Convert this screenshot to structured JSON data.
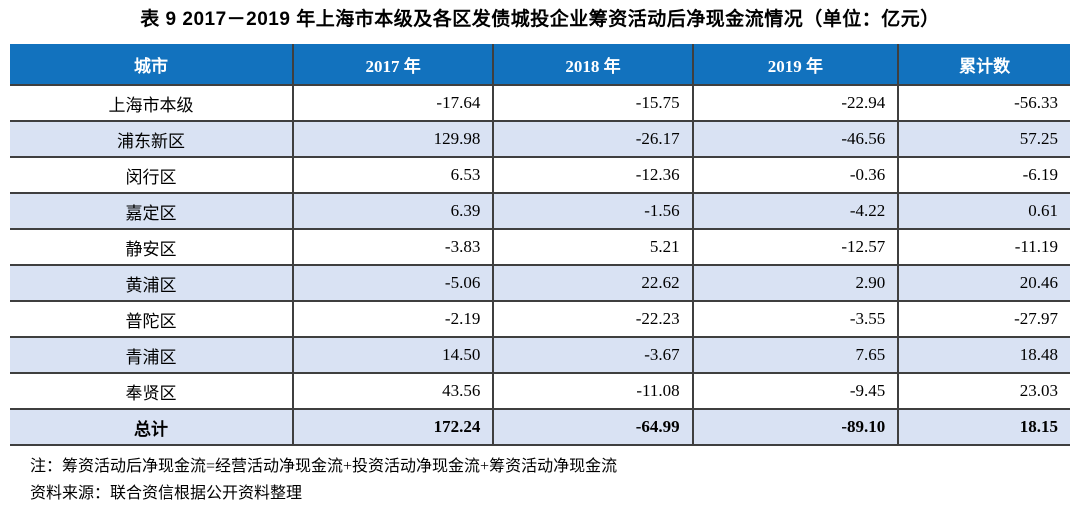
{
  "title": "表 9  2017－2019 年上海市本级及各区发债城投企业筹资活动后净现金流情况（单位：亿元）",
  "table": {
    "columns": [
      "城市",
      "2017 年",
      "2018 年",
      "2019 年",
      "累计数"
    ],
    "rows": [
      {
        "city": "上海市本级",
        "values": [
          "-17.64",
          "-15.75",
          "-22.94",
          "-56.33"
        ],
        "bold": false
      },
      {
        "city": "浦东新区",
        "values": [
          "129.98",
          "-26.17",
          "-46.56",
          "57.25"
        ],
        "bold": false
      },
      {
        "city": "闵行区",
        "values": [
          "6.53",
          "-12.36",
          "-0.36",
          "-6.19"
        ],
        "bold": false
      },
      {
        "city": "嘉定区",
        "values": [
          "6.39",
          "-1.56",
          "-4.22",
          "0.61"
        ],
        "bold": false
      },
      {
        "city": "静安区",
        "values": [
          "-3.83",
          "5.21",
          "-12.57",
          "-11.19"
        ],
        "bold": false
      },
      {
        "city": "黄浦区",
        "values": [
          "-5.06",
          "22.62",
          "2.90",
          "20.46"
        ],
        "bold": false
      },
      {
        "city": "普陀区",
        "values": [
          "-2.19",
          "-22.23",
          "-3.55",
          "-27.97"
        ],
        "bold": false
      },
      {
        "city": "青浦区",
        "values": [
          "14.50",
          "-3.67",
          "7.65",
          "18.48"
        ],
        "bold": false
      },
      {
        "city": "奉贤区",
        "values": [
          "43.56",
          "-11.08",
          "-9.45",
          "23.03"
        ],
        "bold": false
      },
      {
        "city": "总计",
        "values": [
          "172.24",
          "-64.99",
          "-89.10",
          "18.15"
        ],
        "bold": true
      }
    ]
  },
  "notes": {
    "formula": "注：筹资活动后净现金流=经营活动净现金流+投资活动净现金流+筹资活动净现金流",
    "source": "资料来源：联合资信根据公开资料整理"
  },
  "colors": {
    "header_bg": "#1272BE",
    "header_text": "#FFFFFF",
    "stripe_bg": "#D9E2F3",
    "border": "#3F3F3F"
  }
}
